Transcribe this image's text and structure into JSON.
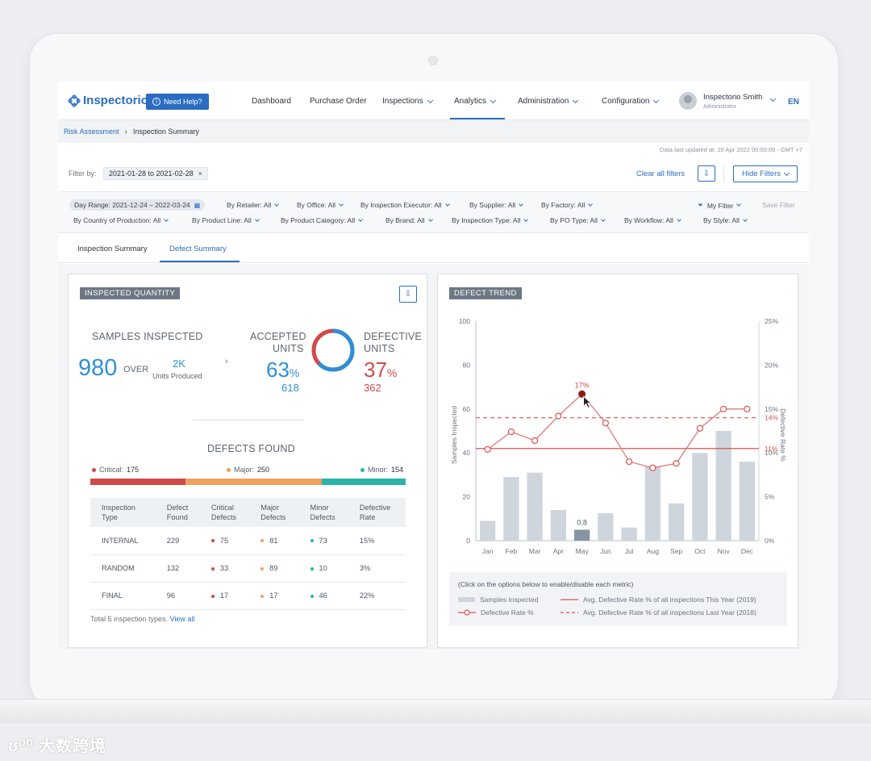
{
  "nav": {
    "logo": "Inspectorio",
    "help_label": "Need Help?",
    "items": [
      "Dashboard",
      "Purchase Order",
      "Inspections",
      "Analytics",
      "Administration",
      "Configuration"
    ],
    "user_name": "Inspectorio Smith",
    "user_role": "Administrator",
    "lang": "EN"
  },
  "breadcrumb": {
    "parent": "Risk Assessment",
    "current": "Inspection Summary"
  },
  "updated": "Data last updated at: 20 Apr 2022 00:00:09 - GMT +7",
  "filter": {
    "label": "Filter by:",
    "chip": "2021-01-28 to 2021-02-28",
    "chip_close": "×",
    "clear_all": "Clear all filters",
    "hide": "Hide Filters",
    "day_range": "Day Range: 2021-12-24 – 2022-03-24",
    "row1": [
      "By Retailer: All",
      "By Office: All",
      "By Inspection Executor: All",
      "By Supplier: All",
      "By Factory: All"
    ],
    "row2": [
      "By Country of Production: All",
      "By Product Line: All",
      "By Product Category: All",
      "By Brand: All",
      "By Inspection Type: All",
      "By PO Type: All",
      "By Workflow: All",
      "By Style: All"
    ],
    "my_filter": "My Filter",
    "save_filter": "Save Filter"
  },
  "tabs": [
    "Inspection Summary",
    "Defect Summary"
  ],
  "left": {
    "tag": "INSPECTED QUANTITY",
    "samples_label": "SAMPLES INSPECTED",
    "samples_value": "980",
    "over": "OVER",
    "produced_value": "2K",
    "produced_label": "Units Produced",
    "arrow": "›",
    "accepted_label_1": "ACCEPTED",
    "accepted_label_2": "UNITS",
    "accepted_pct": "63",
    "accepted_count": "618",
    "defective_label_1": "DEFECTIVE",
    "defective_label_2": "UNITS",
    "defective_pct": "37",
    "defective_count": "362",
    "pct": "%",
    "accepted_ratio": 0.63,
    "defects_found": "DEFECTS FOUND",
    "critical_label": "Critical:",
    "critical_value": "175",
    "major_label": "Major:",
    "major_value": "250",
    "minor_label": "Minor:",
    "minor_value": "154",
    "colors": {
      "critical": "#d04a4a",
      "major": "#f0a060",
      "minor": "#2ab3a8",
      "blue": "#2f8fd6"
    },
    "table": {
      "headers": [
        [
          "Inspection",
          "Type"
        ],
        [
          "Defect",
          "Found"
        ],
        [
          "Critical",
          "Defects"
        ],
        [
          "Major",
          "Defects"
        ],
        [
          "Minor",
          "Defects"
        ],
        [
          "Defective",
          "Rate"
        ]
      ],
      "rows": [
        [
          "INTERNAL",
          "229",
          "75",
          "81",
          "73",
          "15%"
        ],
        [
          "RANDOM",
          "132",
          "33",
          "89",
          "10",
          "3%"
        ],
        [
          "FINAL",
          "96",
          "17",
          "17",
          "46",
          "22%"
        ]
      ]
    },
    "total_note": "Total 5 inspection types.",
    "view_all": "View all"
  },
  "right": {
    "tag": "DEFECT TREND",
    "legend_title": "(Click on the options below to enable/disable each metric)",
    "legend": {
      "samples": "Samples Inspected",
      "defective": "Defective Rate %",
      "avg_this": "Avg. Defective Rate % of all inspections This Year (2019)",
      "avg_last": "Avg. Defective Rate % of all inspections Last Year (2018)"
    }
  },
  "chart_data": {
    "type": "bar",
    "categories": [
      "Jan",
      "Feb",
      "Mar",
      "Apr",
      "May",
      "Jun",
      "Jul",
      "Aug",
      "Sep",
      "Oct",
      "Nov",
      "Dec"
    ],
    "ylabel": "Samples Inspected",
    "y2label": "Defective Rate %",
    "ylim": [
      0,
      100
    ],
    "y2lim": [
      0,
      25
    ],
    "y_ticks": [
      "0",
      "20",
      "40",
      "60",
      "80",
      "100"
    ],
    "y2_ticks": [
      "0%",
      "5%",
      "10%",
      "15%",
      "20%",
      "25%"
    ],
    "series": [
      {
        "name": "Samples Inspected",
        "type": "bar",
        "values": [
          9,
          29,
          31,
          14,
          5,
          12.5,
          6,
          34,
          17,
          40,
          50,
          36
        ],
        "color": "#cfd5dc",
        "highlight_index": 4,
        "highlight_color": "#8795a3"
      },
      {
        "name": "Defective Rate %",
        "type": "line",
        "values": [
          10.4,
          12.4,
          11.4,
          14.2,
          16.7,
          13.4,
          9.0,
          8.3,
          8.8,
          12.8,
          15.0,
          15.0
        ],
        "color": "#e07a7a"
      },
      {
        "name": "Avg. Defective Rate % of all inspections This Year (2019)",
        "type": "hline",
        "value": 10.5,
        "color": "#d9534f"
      },
      {
        "name": "Avg. Defective Rate % of all inspections Last Year (2018)",
        "type": "hline-dashed",
        "value": 14,
        "color": "#d9534f"
      }
    ],
    "annotations": {
      "bar_label": "0.8",
      "point_label": "17%",
      "avg_this_label": "11%",
      "avg_last_label": "14%"
    },
    "grid": false
  }
}
